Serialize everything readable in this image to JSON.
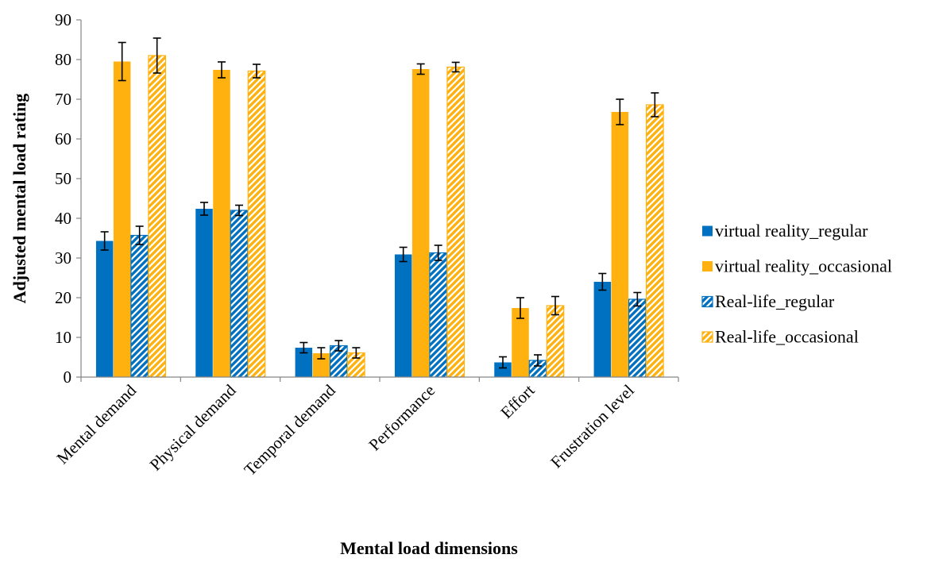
{
  "chart_data": {
    "type": "bar",
    "title": "",
    "xlabel": "Mental load dimensions",
    "ylabel": "Adjusted mental load rating",
    "ylim": [
      0,
      90
    ],
    "yticks": [
      0,
      10,
      20,
      30,
      40,
      50,
      60,
      70,
      80,
      90
    ],
    "grid": false,
    "legend_position": "right",
    "categories": [
      "Mental demand",
      "Physical demand",
      "Temporal demand",
      "Performance",
      "Effort",
      "Frustration level"
    ],
    "series": [
      {
        "name": "virtual reality_regular",
        "color": "#0070C0",
        "pattern": "solid",
        "values": [
          34.3,
          42.4,
          7.4,
          30.9,
          3.7,
          24.0
        ],
        "errors": [
          2.3,
          1.6,
          1.3,
          1.8,
          1.4,
          2.1
        ]
      },
      {
        "name": "virtual reality_occasional",
        "color": "#FFB10F",
        "pattern": "solid",
        "values": [
          79.5,
          77.4,
          6.0,
          77.6,
          17.4,
          66.8
        ],
        "errors": [
          4.8,
          2.0,
          1.4,
          1.3,
          2.6,
          3.2
        ]
      },
      {
        "name": "Real-life_regular",
        "color": "#0070C0",
        "pattern": "hatched",
        "values": [
          35.7,
          42.0,
          7.9,
          31.3,
          4.2,
          19.6
        ],
        "errors": [
          2.3,
          1.3,
          1.3,
          1.9,
          1.4,
          1.7
        ]
      },
      {
        "name": "Real-life_occasional",
        "color": "#FFB10F",
        "pattern": "hatched",
        "values": [
          81.0,
          77.1,
          6.1,
          78.1,
          18.0,
          68.6
        ],
        "errors": [
          4.4,
          1.7,
          1.3,
          1.2,
          2.3,
          3.0
        ]
      }
    ]
  }
}
